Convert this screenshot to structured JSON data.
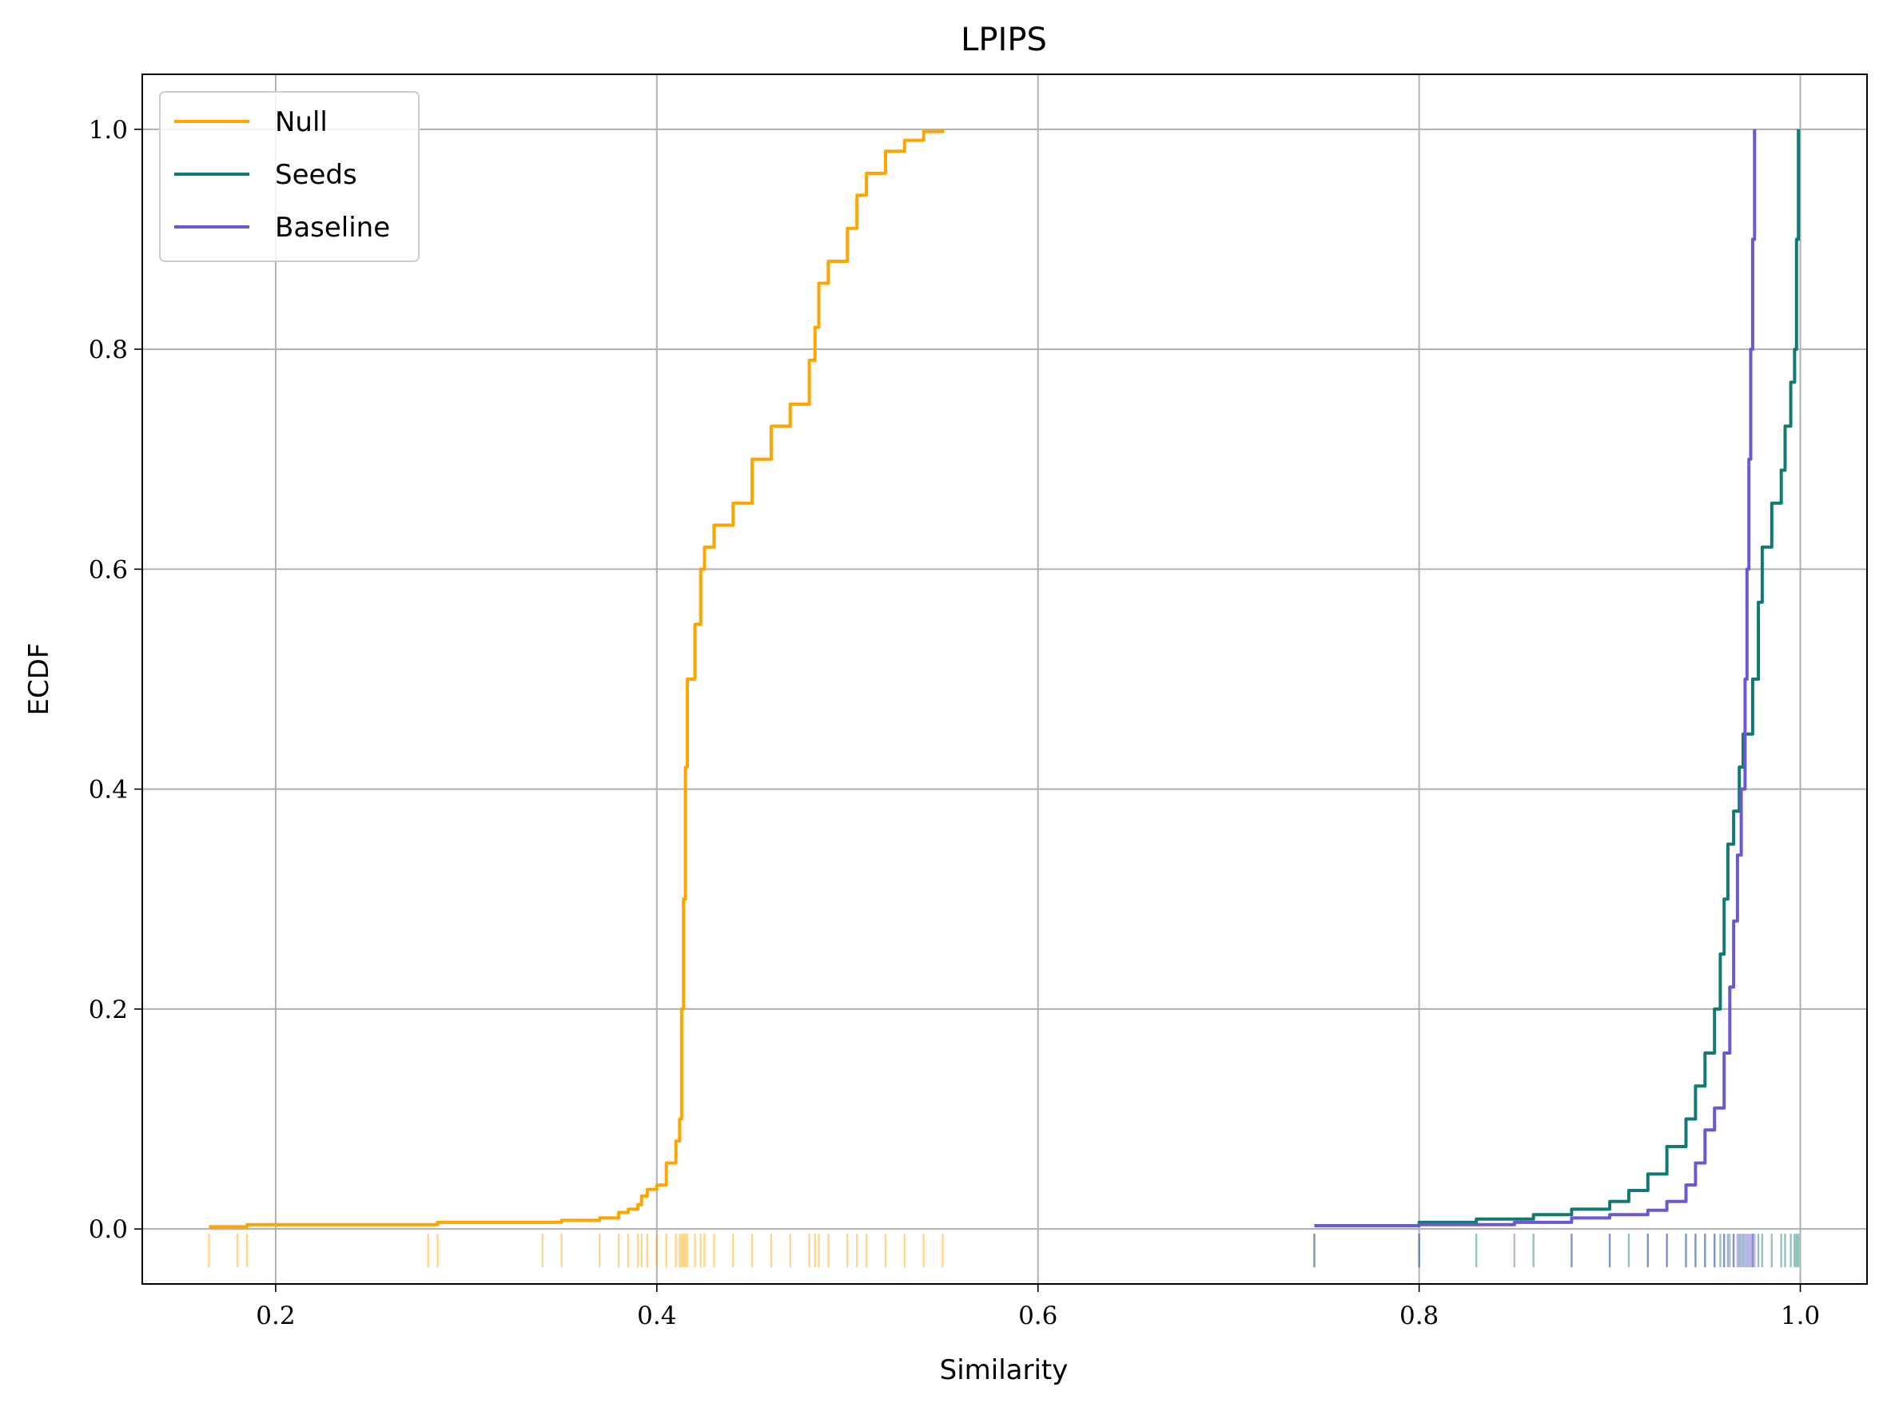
{
  "chart_data": {
    "type": "line",
    "title": "LPIPS",
    "xlabel": "Similarity",
    "ylabel": "ECDF",
    "xlim": [
      0.13,
      1.035
    ],
    "ylim": [
      -0.05,
      1.05
    ],
    "xticks": [
      0.2,
      0.4,
      0.6,
      0.8,
      1.0
    ],
    "xtick_labels": [
      "0.2",
      "0.4",
      "0.6",
      "0.8",
      "1.0"
    ],
    "yticks": [
      0.0,
      0.2,
      0.4,
      0.6,
      0.8,
      1.0
    ],
    "ytick_labels": [
      "0.0",
      "0.2",
      "0.4",
      "0.6",
      "0.8",
      "1.0"
    ],
    "grid": true,
    "legend": "top-left",
    "series": [
      {
        "name": "Null",
        "color": "#ffa500",
        "points": [
          [
            0.165,
            0.002
          ],
          [
            0.18,
            0.002
          ],
          [
            0.185,
            0.004
          ],
          [
            0.28,
            0.004
          ],
          [
            0.285,
            0.006
          ],
          [
            0.34,
            0.006
          ],
          [
            0.35,
            0.008
          ],
          [
            0.37,
            0.01
          ],
          [
            0.38,
            0.015
          ],
          [
            0.385,
            0.018
          ],
          [
            0.39,
            0.022
          ],
          [
            0.392,
            0.03
          ],
          [
            0.395,
            0.036
          ],
          [
            0.4,
            0.04
          ],
          [
            0.405,
            0.06
          ],
          [
            0.41,
            0.08
          ],
          [
            0.412,
            0.1
          ],
          [
            0.413,
            0.2
          ],
          [
            0.414,
            0.3
          ],
          [
            0.415,
            0.42
          ],
          [
            0.416,
            0.5
          ],
          [
            0.42,
            0.55
          ],
          [
            0.423,
            0.6
          ],
          [
            0.425,
            0.62
          ],
          [
            0.43,
            0.64
          ],
          [
            0.44,
            0.66
          ],
          [
            0.45,
            0.7
          ],
          [
            0.46,
            0.73
          ],
          [
            0.47,
            0.75
          ],
          [
            0.48,
            0.79
          ],
          [
            0.483,
            0.82
          ],
          [
            0.485,
            0.86
          ],
          [
            0.49,
            0.88
          ],
          [
            0.5,
            0.91
          ],
          [
            0.505,
            0.94
          ],
          [
            0.51,
            0.96
          ],
          [
            0.52,
            0.98
          ],
          [
            0.53,
            0.99
          ],
          [
            0.54,
            0.998
          ],
          [
            0.55,
            1.0
          ]
        ]
      },
      {
        "name": "Seeds",
        "color": "#117a72",
        "points": [
          [
            0.745,
            0.003
          ],
          [
            0.8,
            0.006
          ],
          [
            0.83,
            0.009
          ],
          [
            0.86,
            0.013
          ],
          [
            0.88,
            0.018
          ],
          [
            0.9,
            0.025
          ],
          [
            0.91,
            0.035
          ],
          [
            0.92,
            0.05
          ],
          [
            0.93,
            0.075
          ],
          [
            0.94,
            0.1
          ],
          [
            0.945,
            0.13
          ],
          [
            0.95,
            0.16
          ],
          [
            0.955,
            0.2
          ],
          [
            0.958,
            0.25
          ],
          [
            0.96,
            0.3
          ],
          [
            0.962,
            0.35
          ],
          [
            0.965,
            0.38
          ],
          [
            0.968,
            0.42
          ],
          [
            0.97,
            0.45
          ],
          [
            0.975,
            0.5
          ],
          [
            0.978,
            0.57
          ],
          [
            0.98,
            0.62
          ],
          [
            0.985,
            0.66
          ],
          [
            0.99,
            0.69
          ],
          [
            0.992,
            0.73
          ],
          [
            0.995,
            0.77
          ],
          [
            0.997,
            0.8
          ],
          [
            0.998,
            0.9
          ],
          [
            0.999,
            1.0
          ]
        ]
      },
      {
        "name": "Baseline",
        "color": "#6a5acd",
        "points": [
          [
            0.745,
            0.003
          ],
          [
            0.8,
            0.004
          ],
          [
            0.85,
            0.006
          ],
          [
            0.88,
            0.01
          ],
          [
            0.9,
            0.013
          ],
          [
            0.92,
            0.017
          ],
          [
            0.93,
            0.025
          ],
          [
            0.94,
            0.04
          ],
          [
            0.945,
            0.06
          ],
          [
            0.95,
            0.09
          ],
          [
            0.955,
            0.11
          ],
          [
            0.96,
            0.16
          ],
          [
            0.963,
            0.22
          ],
          [
            0.965,
            0.28
          ],
          [
            0.967,
            0.34
          ],
          [
            0.969,
            0.4
          ],
          [
            0.971,
            0.5
          ],
          [
            0.972,
            0.6
          ],
          [
            0.973,
            0.7
          ],
          [
            0.974,
            0.8
          ],
          [
            0.975,
            0.9
          ],
          [
            0.976,
            1.0
          ]
        ]
      }
    ]
  }
}
